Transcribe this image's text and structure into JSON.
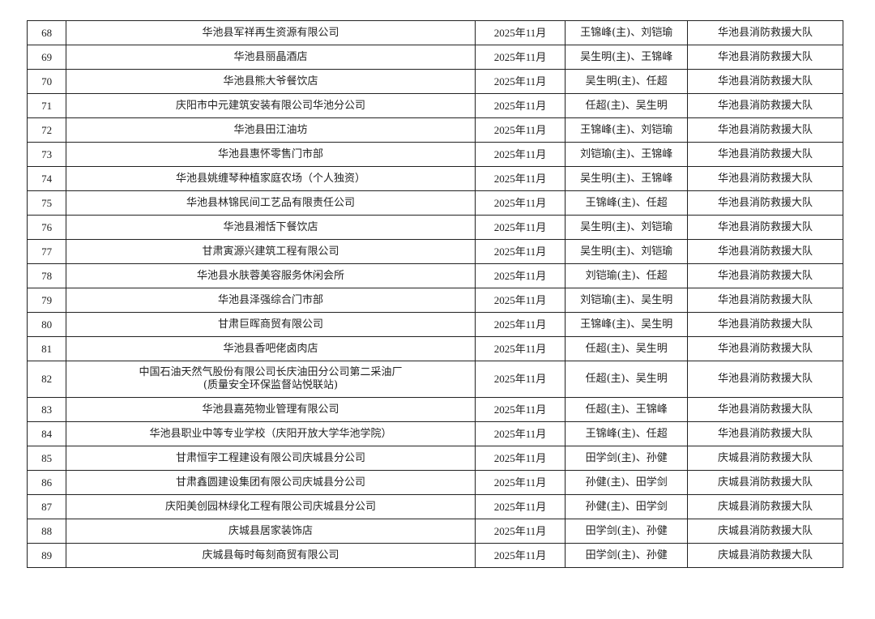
{
  "rows": [
    {
      "no": "68",
      "name": "华池县军祥再生资源有限公司",
      "date": "2025年11月",
      "inspectors": "王锦峰(主)、刘铠瑜",
      "unit": "华池县消防救援大队"
    },
    {
      "no": "69",
      "name": "华池县丽晶酒店",
      "date": "2025年11月",
      "inspectors": "吴生明(主)、王锦峰",
      "unit": "华池县消防救援大队"
    },
    {
      "no": "70",
      "name": "华池县熊大爷餐饮店",
      "date": "2025年11月",
      "inspectors": "吴生明(主)、任超",
      "unit": "华池县消防救援大队"
    },
    {
      "no": "71",
      "name": "庆阳市中元建筑安装有限公司华池分公司",
      "date": "2025年11月",
      "inspectors": "任超(主)、吴生明",
      "unit": "华池县消防救援大队"
    },
    {
      "no": "72",
      "name": "华池县田江油坊",
      "date": "2025年11月",
      "inspectors": "王锦峰(主)、刘铠瑜",
      "unit": "华池县消防救援大队"
    },
    {
      "no": "73",
      "name": "华池县惠怀零售门市部",
      "date": "2025年11月",
      "inspectors": "刘铠瑜(主)、王锦峰",
      "unit": "华池县消防救援大队"
    },
    {
      "no": "74",
      "name": "华池县姚缠琴种植家庭农场（个人独资）",
      "date": "2025年11月",
      "inspectors": "吴生明(主)、王锦峰",
      "unit": "华池县消防救援大队"
    },
    {
      "no": "75",
      "name": "华池县林锦民间工艺品有限责任公司",
      "date": "2025年11月",
      "inspectors": "王锦峰(主)、任超",
      "unit": "华池县消防救援大队"
    },
    {
      "no": "76",
      "name": "华池县湘恬下餐饮店",
      "date": "2025年11月",
      "inspectors": "吴生明(主)、刘铠瑜",
      "unit": "华池县消防救援大队"
    },
    {
      "no": "77",
      "name": "甘肃寅源兴建筑工程有限公司",
      "date": "2025年11月",
      "inspectors": "吴生明(主)、刘铠瑜",
      "unit": "华池县消防救援大队"
    },
    {
      "no": "78",
      "name": "华池县水肤蓉美容服务休闲会所",
      "date": "2025年11月",
      "inspectors": "刘铠瑜(主)、任超",
      "unit": "华池县消防救援大队"
    },
    {
      "no": "79",
      "name": "华池县泽强综合门市部",
      "date": "2025年11月",
      "inspectors": "刘铠瑜(主)、吴生明",
      "unit": "华池县消防救援大队"
    },
    {
      "no": "80",
      "name": "甘肃巨晖商贸有限公司",
      "date": "2025年11月",
      "inspectors": "王锦峰(主)、吴生明",
      "unit": "华池县消防救援大队"
    },
    {
      "no": "81",
      "name": "华池县香吧佬卤肉店",
      "date": "2025年11月",
      "inspectors": "任超(主)、吴生明",
      "unit": "华池县消防救援大队"
    },
    {
      "no": "82",
      "name": "中国石油天然气股份有限公司长庆油田分公司第二采油厂",
      "name2": "(质量安全环保监督站悦联站)",
      "date": "2025年11月",
      "inspectors": "任超(主)、吴生明",
      "unit": "华池县消防救援大队"
    },
    {
      "no": "83",
      "name": "华池县嘉苑物业管理有限公司",
      "date": "2025年11月",
      "inspectors": "任超(主)、王锦峰",
      "unit": "华池县消防救援大队"
    },
    {
      "no": "84",
      "name": "华池县职业中等专业学校（庆阳开放大学华池学院）",
      "date": "2025年11月",
      "inspectors": "王锦峰(主)、任超",
      "unit": "华池县消防救援大队"
    },
    {
      "no": "85",
      "name": "甘肃恒宇工程建设有限公司庆城县分公司",
      "date": "2025年11月",
      "inspectors": "田学剑(主)、孙健",
      "unit": "庆城县消防救援大队"
    },
    {
      "no": "86",
      "name": "甘肃鑫圆建设集团有限公司庆城县分公司",
      "date": "2025年11月",
      "inspectors": "孙健(主)、田学剑",
      "unit": "庆城县消防救援大队"
    },
    {
      "no": "87",
      "name": "庆阳美创园林绿化工程有限公司庆城县分公司",
      "date": "2025年11月",
      "inspectors": "孙健(主)、田学剑",
      "unit": "庆城县消防救援大队"
    },
    {
      "no": "88",
      "name": "庆城县居家装饰店",
      "date": "2025年11月",
      "inspectors": "田学剑(主)、孙健",
      "unit": "庆城县消防救援大队"
    },
    {
      "no": "89",
      "name": "庆城县每时每刻商贸有限公司",
      "date": "2025年11月",
      "inspectors": "田学剑(主)、孙健",
      "unit": "庆城县消防救援大队"
    }
  ]
}
